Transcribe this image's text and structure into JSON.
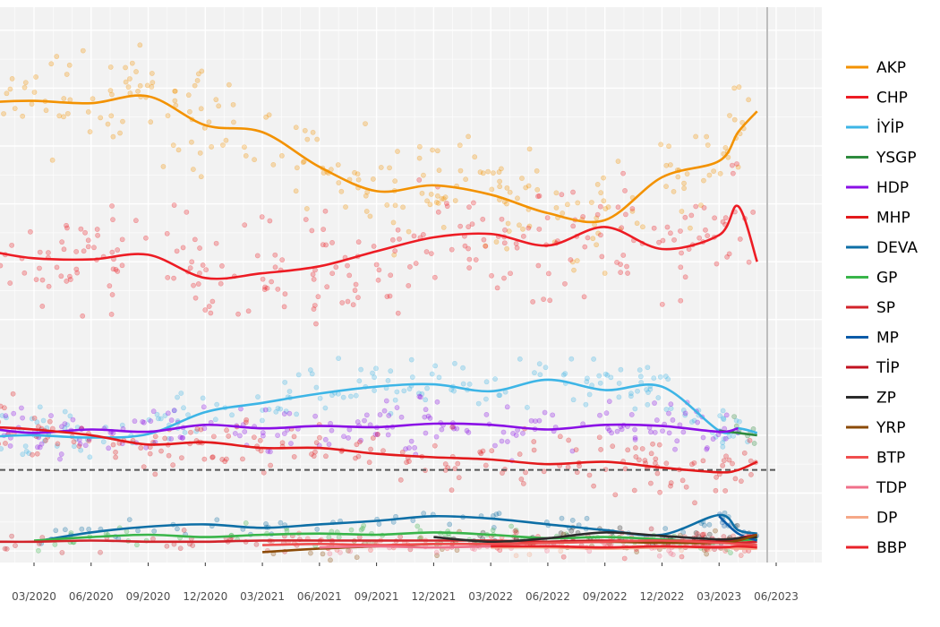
{
  "chart_data": {
    "type": "line",
    "title": "",
    "xlabel": "",
    "ylabel": "",
    "x_tick_labels": [
      "03/2020",
      "06/2020",
      "09/2020",
      "12/2020",
      "03/2021",
      "06/2021",
      "09/2021",
      "12/2021",
      "03/2022",
      "06/2022",
      "09/2022",
      "12/2022",
      "03/2023",
      "06/2023"
    ],
    "x": [
      "2019-12",
      "2020-01",
      "2020-03",
      "2020-06",
      "2020-09",
      "2020-12",
      "2021-03",
      "2021-06",
      "2021-09",
      "2021-12",
      "2022-03",
      "2022-06",
      "2022-09",
      "2022-12",
      "2023-03",
      "2023-04",
      "2023-05"
    ],
    "ylim": [
      -1,
      47
    ],
    "grid": true,
    "threshold_line": 7,
    "legend_position": "right",
    "series": [
      {
        "name": "AKP",
        "color": "#F39200",
        "values": [
          38.5,
          38.8,
          38.9,
          38.7,
          39.3,
          36.8,
          36.2,
          33.2,
          31.1,
          31.6,
          30.8,
          29.2,
          28.6,
          32.3,
          33.7,
          36.2,
          38.0
        ]
      },
      {
        "name": "CHP",
        "color": "#ED1C24",
        "values": [
          26.0,
          25.8,
          25.3,
          25.2,
          25.6,
          23.6,
          24.0,
          24.6,
          25.9,
          27.1,
          27.4,
          26.4,
          28.0,
          26.1,
          27.3,
          29.8,
          25.0
        ]
      },
      {
        "name": "İYİP",
        "color": "#3DB5E6",
        "values": [
          9.8,
          9.9,
          10.0,
          9.8,
          10.1,
          12.0,
          12.8,
          13.6,
          14.2,
          14.4,
          13.8,
          14.8,
          13.9,
          14.2,
          10.4,
          10.6,
          10.2
        ]
      },
      {
        "name": "YSGP",
        "color": "#2E8B3E",
        "values": [
          null,
          null,
          null,
          null,
          null,
          null,
          null,
          null,
          null,
          null,
          null,
          null,
          null,
          null,
          10.4,
          10.2,
          10.0
        ]
      },
      {
        "name": "HDP",
        "color": "#8A0FE6",
        "values": [
          10.6,
          10.5,
          10.2,
          10.5,
          10.3,
          10.9,
          10.6,
          10.8,
          10.7,
          11.0,
          10.9,
          10.5,
          10.9,
          10.8,
          10.3,
          10.6,
          null
        ]
      },
      {
        "name": "MHP",
        "color": "#E31A1C",
        "values": [
          10.8,
          10.7,
          10.5,
          10.0,
          9.2,
          9.4,
          8.9,
          8.9,
          8.4,
          8.1,
          7.9,
          7.5,
          7.7,
          7.2,
          6.8,
          7.0,
          7.7
        ]
      },
      {
        "name": "DEVA",
        "color": "#0E6FA6",
        "values": [
          null,
          null,
          0.8,
          1.6,
          2.1,
          2.3,
          2.0,
          2.3,
          2.6,
          3.0,
          2.8,
          2.3,
          1.8,
          1.4,
          3.1,
          1.8,
          1.5
        ]
      },
      {
        "name": "GP",
        "color": "#39B54A",
        "values": [
          null,
          null,
          0.9,
          1.2,
          1.4,
          1.2,
          1.4,
          1.5,
          1.4,
          1.6,
          1.4,
          1.1,
          1.2,
          1.0,
          0.7,
          0.9,
          1.0
        ]
      },
      {
        "name": "SP",
        "color": "#D2232A",
        "values": [
          0.8,
          0.8,
          0.8,
          0.9,
          0.8,
          0.8,
          0.9,
          0.9,
          0.9,
          0.9,
          0.9,
          0.8,
          0.8,
          0.9,
          0.8,
          0.7,
          0.8
        ]
      },
      {
        "name": "MP",
        "color": "#0B5BA8",
        "values": [
          null,
          null,
          null,
          null,
          null,
          null,
          null,
          null,
          null,
          null,
          null,
          null,
          null,
          null,
          3.0,
          1.5,
          0.9
        ]
      },
      {
        "name": "TİP",
        "color": "#C1121F",
        "values": [
          null,
          null,
          null,
          null,
          null,
          null,
          null,
          null,
          null,
          null,
          null,
          0.8,
          0.9,
          0.8,
          0.8,
          1.1,
          1.4
        ]
      },
      {
        "name": "ZP",
        "color": "#2B2B2B",
        "values": [
          null,
          null,
          null,
          null,
          null,
          null,
          null,
          null,
          null,
          1.2,
          0.8,
          1.1,
          1.6,
          1.3,
          1.0,
          1.1,
          1.2
        ]
      },
      {
        "name": "YRP",
        "color": "#8B4A06",
        "values": [
          null,
          null,
          null,
          null,
          null,
          null,
          -0.1,
          0.2,
          0.4,
          0.6,
          0.6,
          0.7,
          0.8,
          0.7,
          0.7,
          0.9,
          1.4
        ]
      },
      {
        "name": "BTP",
        "color": "#F04E4E",
        "values": [
          null,
          null,
          null,
          null,
          null,
          null,
          0.5,
          0.6,
          0.5,
          0.6,
          0.6,
          0.7,
          0.8,
          0.9,
          0.7,
          0.6,
          0.5
        ]
      },
      {
        "name": "TDP",
        "color": "#F0708A",
        "values": [
          null,
          null,
          null,
          null,
          null,
          null,
          null,
          0.3,
          0.4,
          0.3,
          0.4,
          0.4,
          0.3,
          0.3,
          0.4,
          0.3,
          0.3
        ]
      },
      {
        "name": "DP",
        "color": "#F5A888",
        "values": [
          null,
          null,
          null,
          null,
          null,
          null,
          null,
          null,
          null,
          null,
          0.3,
          0.3,
          0.2,
          0.3,
          0.3,
          0.2,
          0.2
        ]
      },
      {
        "name": "BBP",
        "color": "#E8222A",
        "values": [
          null,
          null,
          null,
          null,
          null,
          null,
          null,
          null,
          null,
          null,
          0.4,
          0.4,
          0.3,
          0.4,
          0.3,
          0.4,
          0.3
        ]
      }
    ]
  }
}
